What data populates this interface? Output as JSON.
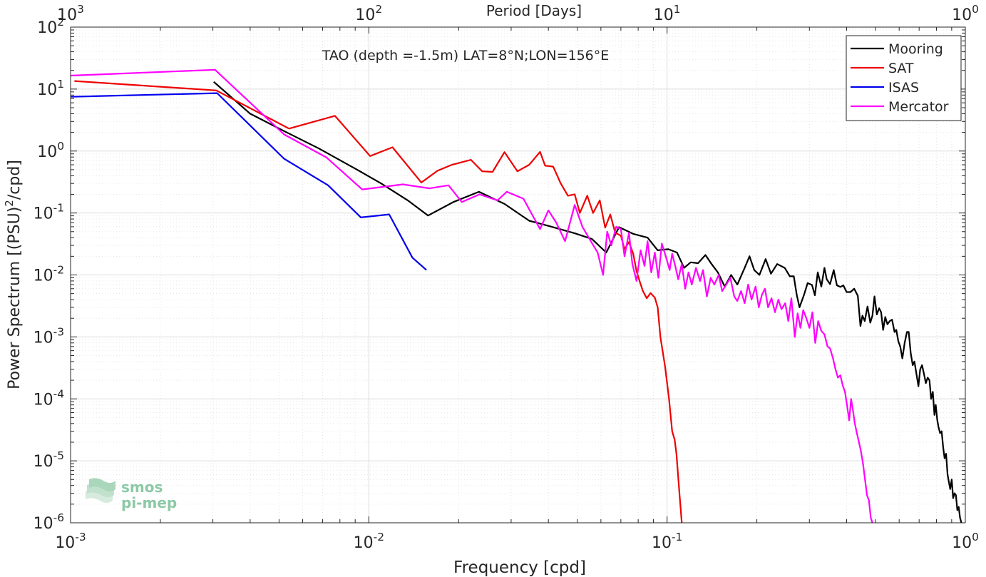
{
  "chart_data": {
    "type": "line",
    "title": "TAO (depth =-1.5m) LAT=8°N;LON=156°E",
    "xlabel": "Frequency [cpd]",
    "ylabel": "Power Spectrum [(PSU)²/cpd]",
    "top_xlabel": "Period [Days]",
    "xscale": "log",
    "yscale": "log",
    "xlim": [
      0.001,
      1
    ],
    "ylim": [
      1e-06,
      100
    ],
    "grid": true,
    "legend_position": "top-right",
    "x_ticks": [
      {
        "base": "10",
        "exp": "-3"
      },
      {
        "base": "10",
        "exp": "-2"
      },
      {
        "base": "10",
        "exp": "-1"
      },
      {
        "base": "10",
        "exp": "0"
      }
    ],
    "top_ticks": [
      {
        "base": "10",
        "exp": "3"
      },
      {
        "base": "10",
        "exp": "2"
      },
      {
        "base": "10",
        "exp": "1"
      },
      {
        "base": "10",
        "exp": "0"
      }
    ],
    "y_ticks": [
      {
        "base": "10",
        "exp": "-6"
      },
      {
        "base": "10",
        "exp": "-5"
      },
      {
        "base": "10",
        "exp": "-4"
      },
      {
        "base": "10",
        "exp": "-3"
      },
      {
        "base": "10",
        "exp": "-2"
      },
      {
        "base": "10",
        "exp": "-1"
      },
      {
        "base": "10",
        "exp": "0"
      },
      {
        "base": "10",
        "exp": "1"
      },
      {
        "base": "10",
        "exp": "2"
      }
    ],
    "series": [
      {
        "name": "Mooring",
        "color": "#000000",
        "points": [
          [
            0.00302,
            13.1
          ],
          [
            0.004,
            4.0
          ],
          [
            0.0052,
            2.1
          ],
          [
            0.0068,
            1.1
          ],
          [
            0.009,
            0.52
          ],
          [
            0.011,
            0.3
          ],
          [
            0.0135,
            0.16
          ],
          [
            0.0158,
            0.091
          ],
          [
            0.0192,
            0.15
          ],
          [
            0.0234,
            0.22
          ],
          [
            0.0285,
            0.14
          ],
          [
            0.0345,
            0.075
          ],
          [
            0.041,
            0.06
          ],
          [
            0.049,
            0.047
          ],
          [
            0.056,
            0.038
          ],
          [
            0.0625,
            0.023
          ],
          [
            0.069,
            0.059
          ],
          [
            0.077,
            0.046
          ],
          [
            0.086,
            0.04
          ],
          [
            0.093,
            0.025
          ],
          [
            0.101,
            0.026
          ],
          [
            0.108,
            0.023
          ],
          [
            0.114,
            0.013
          ],
          [
            0.12,
            0.016
          ],
          [
            0.127,
            0.0155
          ],
          [
            0.1345,
            0.021
          ],
          [
            0.141,
            0.015
          ],
          [
            0.148,
            0.011
          ],
          [
            0.156,
            0.0065
          ],
          [
            0.164,
            0.01
          ],
          [
            0.172,
            0.007
          ],
          [
            0.182,
            0.013
          ],
          [
            0.189,
            0.02
          ],
          [
            0.196,
            0.012
          ],
          [
            0.204,
            0.01
          ],
          [
            0.214,
            0.018
          ],
          [
            0.223,
            0.0105
          ],
          [
            0.234,
            0.015
          ],
          [
            0.248,
            0.013
          ],
          [
            0.258,
            0.0095
          ],
          [
            0.266,
            0.0095
          ],
          [
            0.272,
            0.0048
          ],
          [
            0.278,
            0.003
          ],
          [
            0.288,
            0.0048
          ],
          [
            0.296,
            0.0074
          ],
          [
            0.306,
            0.0069
          ],
          [
            0.313,
            0.0047
          ],
          [
            0.32,
            0.011
          ],
          [
            0.329,
            0.0065
          ],
          [
            0.337,
            0.013
          ],
          [
            0.343,
            0.0085
          ],
          [
            0.352,
            0.0071
          ],
          [
            0.362,
            0.012
          ],
          [
            0.371,
            0.0068
          ],
          [
            0.381,
            0.0064
          ],
          [
            0.39,
            0.0068
          ],
          [
            0.4,
            0.0053
          ],
          [
            0.412,
            0.0053
          ],
          [
            0.424,
            0.006
          ],
          [
            0.436,
            0.0046
          ],
          [
            0.445,
            0.0015
          ],
          [
            0.452,
            0.0022
          ],
          [
            0.46,
            0.0018
          ],
          [
            0.47,
            0.0031
          ],
          [
            0.48,
            0.0017
          ],
          [
            0.488,
            0.0022
          ],
          [
            0.496,
            0.0045
          ],
          [
            0.505,
            0.0023
          ],
          [
            0.514,
            0.0029
          ],
          [
            0.522,
            0.0025
          ],
          [
            0.53,
            0.0013
          ],
          [
            0.539,
            0.0021
          ],
          [
            0.548,
            0.0016
          ],
          [
            0.558,
            0.0018
          ],
          [
            0.568,
            0.0019
          ],
          [
            0.579,
            0.0012
          ],
          [
            0.587,
            0.0013
          ],
          [
            0.596,
            0.00085
          ],
          [
            0.605,
            0.0007
          ],
          [
            0.615,
            0.00045
          ],
          [
            0.626,
            0.0008
          ],
          [
            0.637,
            0.0012
          ],
          [
            0.646,
            0.0012
          ],
          [
            0.656,
            0.00055
          ],
          [
            0.666,
            0.00035
          ],
          [
            0.675,
            0.0004
          ],
          [
            0.686,
            0.00025
          ],
          [
            0.696,
            0.00016
          ],
          [
            0.706,
            0.0003
          ],
          [
            0.716,
            0.00035
          ],
          [
            0.727,
            0.00025
          ],
          [
            0.737,
            0.00018
          ],
          [
            0.748,
            0.00022
          ],
          [
            0.758,
            0.0002
          ],
          [
            0.768,
            0.0001
          ],
          [
            0.778,
            0.00013
          ],
          [
            0.788,
            5.5e-05
          ],
          [
            0.796,
            8e-05
          ],
          [
            0.805,
            4.6e-05
          ],
          [
            0.813,
            3.5e-05
          ],
          [
            0.823,
            2.8e-05
          ],
          [
            0.833,
            3e-05
          ],
          [
            0.842,
            1.7e-05
          ],
          [
            0.852,
            1.1e-05
          ],
          [
            0.862,
            1.3e-05
          ],
          [
            0.872,
            6e-06
          ],
          [
            0.881,
            4.5e-06
          ],
          [
            0.89,
            3.5e-06
          ],
          [
            0.9,
            5e-06
          ],
          [
            0.91,
            2.5e-06
          ],
          [
            0.92,
            3e-06
          ],
          [
            0.93,
            2.8e-06
          ],
          [
            0.94,
            1.6e-06
          ],
          [
            0.95,
            1.8e-06
          ],
          [
            0.96,
            1.2e-06
          ],
          [
            0.97,
            1e-06
          ]
        ]
      },
      {
        "name": "SAT",
        "color": "#ee0000",
        "points": [
          [
            0.00103,
            13.5
          ],
          [
            0.00308,
            9.5
          ],
          [
            0.0054,
            2.3
          ],
          [
            0.0077,
            3.7
          ],
          [
            0.0101,
            0.83
          ],
          [
            0.012,
            1.15
          ],
          [
            0.015,
            0.31
          ],
          [
            0.017,
            0.48
          ],
          [
            0.019,
            0.6
          ],
          [
            0.022,
            0.72
          ],
          [
            0.024,
            0.47
          ],
          [
            0.026,
            0.46
          ],
          [
            0.0285,
            0.96
          ],
          [
            0.0315,
            0.47
          ],
          [
            0.0345,
            0.6
          ],
          [
            0.0375,
            0.97
          ],
          [
            0.039,
            0.58
          ],
          [
            0.0415,
            0.56
          ],
          [
            0.044,
            0.3
          ],
          [
            0.0465,
            0.19
          ],
          [
            0.049,
            0.2
          ],
          [
            0.051,
            0.1
          ],
          [
            0.054,
            0.19
          ],
          [
            0.0565,
            0.1
          ],
          [
            0.0595,
            0.16
          ],
          [
            0.062,
            0.058
          ],
          [
            0.0645,
            0.095
          ],
          [
            0.067,
            0.048
          ],
          [
            0.07,
            0.043
          ],
          [
            0.072,
            0.026
          ],
          [
            0.0745,
            0.034
          ],
          [
            0.077,
            0.022
          ],
          [
            0.079,
            0.0115
          ],
          [
            0.081,
            0.0078
          ],
          [
            0.083,
            0.0055
          ],
          [
            0.0855,
            0.0042
          ],
          [
            0.088,
            0.0051
          ],
          [
            0.091,
            0.0043
          ],
          [
            0.093,
            0.003
          ],
          [
            0.095,
            0.001
          ],
          [
            0.0985,
            0.00033
          ],
          [
            0.1015,
            0.0001
          ],
          [
            0.104,
            3e-05
          ],
          [
            0.106,
            2.2e-05
          ],
          [
            0.1075,
            1.3e-05
          ],
          [
            0.11,
            3e-06
          ],
          [
            0.112,
            1e-06
          ]
        ]
      },
      {
        "name": "ISAS",
        "color": "#0000ee",
        "points": [
          [
            0.001,
            7.5
          ],
          [
            0.0031,
            8.6
          ],
          [
            0.0052,
            0.75
          ],
          [
            0.0073,
            0.28
          ],
          [
            0.0094,
            0.085
          ],
          [
            0.0117,
            0.095
          ],
          [
            0.014,
            0.019
          ],
          [
            0.0156,
            0.012
          ]
        ]
      },
      {
        "name": "Mercator",
        "color": "#ff00ff",
        "points": [
          [
            0.001,
            16.5
          ],
          [
            0.00305,
            20.5
          ],
          [
            0.0052,
            1.85
          ],
          [
            0.0072,
            0.79
          ],
          [
            0.0095,
            0.24
          ],
          [
            0.013,
            0.29
          ],
          [
            0.016,
            0.25
          ],
          [
            0.0185,
            0.28
          ],
          [
            0.0205,
            0.15
          ],
          [
            0.0235,
            0.2
          ],
          [
            0.027,
            0.16
          ],
          [
            0.029,
            0.22
          ],
          [
            0.033,
            0.17
          ],
          [
            0.0375,
            0.055
          ],
          [
            0.04,
            0.11
          ],
          [
            0.0425,
            0.07
          ],
          [
            0.0455,
            0.035
          ],
          [
            0.049,
            0.135
          ],
          [
            0.052,
            0.06
          ],
          [
            0.0555,
            0.035
          ],
          [
            0.0585,
            0.023
          ],
          [
            0.061,
            0.01
          ],
          [
            0.063,
            0.05
          ],
          [
            0.065,
            0.03
          ],
          [
            0.0675,
            0.06
          ],
          [
            0.07,
            0.055
          ],
          [
            0.072,
            0.02
          ],
          [
            0.0745,
            0.048
          ],
          [
            0.0765,
            0.015
          ],
          [
            0.079,
            0.008
          ],
          [
            0.0815,
            0.025
          ],
          [
            0.084,
            0.014
          ],
          [
            0.086,
            0.035
          ],
          [
            0.0885,
            0.011
          ],
          [
            0.091,
            0.023
          ],
          [
            0.0935,
            0.009
          ],
          [
            0.096,
            0.032
          ],
          [
            0.099,
            0.02
          ],
          [
            0.102,
            0.012
          ],
          [
            0.104,
            0.022
          ],
          [
            0.1065,
            0.014
          ],
          [
            0.109,
            0.0085
          ],
          [
            0.112,
            0.015
          ],
          [
            0.115,
            0.006
          ],
          [
            0.118,
            0.011
          ],
          [
            0.121,
            0.007
          ],
          [
            0.125,
            0.013
          ],
          [
            0.129,
            0.008
          ],
          [
            0.132,
            0.012
          ],
          [
            0.136,
            0.0045
          ],
          [
            0.14,
            0.009
          ],
          [
            0.144,
            0.007
          ],
          [
            0.149,
            0.01
          ],
          [
            0.153,
            0.0055
          ],
          [
            0.158,
            0.007
          ],
          [
            0.163,
            0.009
          ],
          [
            0.168,
            0.0045
          ],
          [
            0.172,
            0.0038
          ],
          [
            0.177,
            0.0055
          ],
          [
            0.182,
            0.0035
          ],
          [
            0.187,
            0.007
          ],
          [
            0.192,
            0.004
          ],
          [
            0.198,
            0.0065
          ],
          [
            0.203,
            0.003
          ],
          [
            0.208,
            0.0048
          ],
          [
            0.213,
            0.006
          ],
          [
            0.218,
            0.003
          ],
          [
            0.224,
            0.0042
          ],
          [
            0.23,
            0.0025
          ],
          [
            0.236,
            0.004
          ],
          [
            0.242,
            0.0028
          ],
          [
            0.249,
            0.0035
          ],
          [
            0.255,
            0.0018
          ],
          [
            0.261,
            0.0042
          ],
          [
            0.268,
            0.001
          ],
          [
            0.274,
            0.0024
          ],
          [
            0.28,
            0.0014
          ],
          [
            0.286,
            0.0027
          ],
          [
            0.293,
            0.002
          ],
          [
            0.3,
            0.0014
          ],
          [
            0.307,
            0.0025
          ],
          [
            0.314,
            0.0008
          ],
          [
            0.321,
            0.0018
          ],
          [
            0.329,
            0.00125
          ],
          [
            0.337,
            0.0011
          ],
          [
            0.345,
            0.0007
          ],
          [
            0.352,
            0.00065
          ],
          [
            0.36,
            0.00045
          ],
          [
            0.367,
            0.0003
          ],
          [
            0.374,
            0.00022
          ],
          [
            0.381,
            0.00024
          ],
          [
            0.388,
            0.000165
          ],
          [
            0.395,
            0.00013
          ],
          [
            0.401,
            8e-05
          ],
          [
            0.408,
            4.5e-05
          ],
          [
            0.414,
            0.0001
          ],
          [
            0.42,
            6.5e-05
          ],
          [
            0.426,
            4e-05
          ],
          [
            0.433,
            2.8e-05
          ],
          [
            0.44,
            2e-05
          ],
          [
            0.447,
            1.4e-05
          ],
          [
            0.454,
            9e-06
          ],
          [
            0.461,
            5e-06
          ],
          [
            0.468,
            2.8e-06
          ],
          [
            0.475,
            2.3e-06
          ],
          [
            0.482,
            1.2e-06
          ],
          [
            0.488,
            1e-06
          ]
        ]
      }
    ]
  },
  "watermark": {
    "line1": "smos",
    "line2": "pi-mep"
  }
}
